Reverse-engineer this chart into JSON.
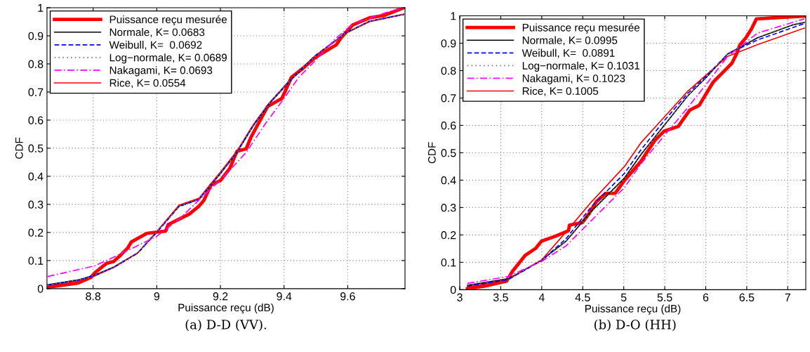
{
  "chart_data": [
    {
      "type": "line",
      "xlabel": "Puissance reçu (dB)",
      "ylabel": "CDF",
      "annotations": [
        "(a) D-D (VV)."
      ],
      "xlim": [
        8.655,
        9.78
      ],
      "ylim": [
        0,
        1
      ],
      "xticks": [
        8.8,
        9,
        9.2,
        9.4,
        9.6
      ],
      "yticks": [
        0,
        0.1,
        0.2,
        0.3,
        0.4,
        0.5,
        0.6,
        0.7,
        0.8,
        0.9,
        1
      ],
      "grid": true,
      "legend": "top left",
      "series": [
        {
          "name": "Puissance reçu mesurée",
          "color": "#ff0000",
          "line_style": "solid",
          "x": [
            8.657,
            8.753,
            8.794,
            8.805,
            8.842,
            8.865,
            8.887,
            8.909,
            8.92,
            8.947,
            8.969,
            9.028,
            9.036,
            9.073,
            9.103,
            9.133,
            9.148,
            9.17,
            9.2,
            9.229,
            9.252,
            9.281,
            9.296,
            9.318,
            9.348,
            9.393,
            9.423,
            9.46,
            9.497,
            9.564,
            9.579,
            9.616,
            9.668,
            9.713,
            9.776
          ],
          "values": [
            0.005,
            0.02,
            0.041,
            0.056,
            0.09,
            0.097,
            0.12,
            0.145,
            0.166,
            0.183,
            0.197,
            0.205,
            0.228,
            0.249,
            0.266,
            0.294,
            0.314,
            0.368,
            0.385,
            0.427,
            0.489,
            0.498,
            0.539,
            0.585,
            0.648,
            0.677,
            0.752,
            0.785,
            0.822,
            0.868,
            0.893,
            0.939,
            0.964,
            0.972,
            1.0
          ]
        },
        {
          "name": "Normale, K= 0.0683",
          "color": "#000000",
          "line_style": "solid",
          "x": [
            8.657,
            8.753,
            8.805,
            8.865,
            8.94,
            9.0,
            9.07,
            9.133,
            9.2,
            9.252,
            9.304,
            9.355,
            9.415,
            9.497,
            9.594,
            9.668,
            9.776
          ],
          "values": [
            0.014,
            0.031,
            0.048,
            0.077,
            0.127,
            0.202,
            0.294,
            0.318,
            0.41,
            0.485,
            0.581,
            0.66,
            0.735,
            0.827,
            0.91,
            0.952,
            0.977
          ]
        },
        {
          "name": "Weibull, K=  0.0692",
          "color": "#0000ff",
          "line_style": "dashed",
          "x": [
            8.657,
            8.753,
            8.805,
            8.865,
            8.94,
            9.0,
            9.07,
            9.133,
            9.2,
            9.252,
            9.304,
            9.355,
            9.415,
            9.497,
            9.594,
            9.668,
            9.776
          ],
          "values": [
            0.012,
            0.03,
            0.047,
            0.076,
            0.126,
            0.2,
            0.292,
            0.318,
            0.41,
            0.486,
            0.583,
            0.662,
            0.737,
            0.829,
            0.911,
            0.952,
            0.976
          ]
        },
        {
          "name": "Log−normale, K= 0.0689",
          "color": "#808080",
          "line_style": "dotted",
          "x": [
            8.657,
            8.753,
            8.805,
            8.865,
            8.94,
            9.0,
            9.07,
            9.133,
            9.2,
            9.252,
            9.304,
            9.355,
            9.415,
            9.497,
            9.594,
            9.668,
            9.776
          ],
          "values": [
            0.013,
            0.031,
            0.048,
            0.077,
            0.127,
            0.201,
            0.293,
            0.318,
            0.41,
            0.485,
            0.581,
            0.66,
            0.735,
            0.827,
            0.91,
            0.952,
            0.977
          ]
        },
        {
          "name": "Nakagami, K= 0.0693",
          "color": "#ff00ff",
          "line_style": "dashdot",
          "x": [
            8.657,
            8.805,
            8.876,
            9.0,
            9.073,
            9.135,
            9.206,
            9.281,
            9.34,
            9.4,
            9.446,
            9.497,
            9.557,
            9.616,
            9.727,
            9.776
          ],
          "values": [
            0.043,
            0.081,
            0.118,
            0.186,
            0.25,
            0.318,
            0.393,
            0.485,
            0.585,
            0.677,
            0.752,
            0.81,
            0.885,
            0.943,
            0.985,
            1.0
          ]
        },
        {
          "name": "Rice, K= 0.0554",
          "color": "#ff0000",
          "line_style": "solid",
          "x": [
            8.657,
            8.753,
            8.805,
            8.865,
            8.94,
            9.0,
            9.07,
            9.133,
            9.2,
            9.252,
            9.304,
            9.355,
            9.415,
            9.497,
            9.594,
            9.668,
            9.776
          ],
          "values": [
            0.01,
            0.028,
            0.045,
            0.075,
            0.127,
            0.203,
            0.297,
            0.322,
            0.415,
            0.49,
            0.585,
            0.663,
            0.738,
            0.828,
            0.909,
            0.95,
            0.976
          ]
        }
      ]
    },
    {
      "type": "line",
      "xlabel": "Puissance reçu (dB)",
      "ylabel": "CDF",
      "annotations": [
        "(b) D-O (HH)"
      ],
      "xlim": [
        3,
        7.22
      ],
      "ylim": [
        0,
        1
      ],
      "xticks": [
        3,
        3.5,
        4,
        4.5,
        5,
        5.5,
        6,
        6.5,
        7
      ],
      "yticks": [
        0,
        0.1,
        0.2,
        0.3,
        0.4,
        0.5,
        0.6,
        0.7,
        0.8,
        0.9,
        1
      ],
      "grid": true,
      "legend": "top left",
      "series": [
        {
          "name": "Puissance reçu mesurée",
          "color": "#ff0000",
          "line_style": "solid",
          "x": [
            3.094,
            3.299,
            3.57,
            3.641,
            3.798,
            3.926,
            3.997,
            4.154,
            4.325,
            4.339,
            4.496,
            4.581,
            4.667,
            4.781,
            4.895,
            5.009,
            5.208,
            5.379,
            5.493,
            5.664,
            5.806,
            5.92,
            6.006,
            6.091,
            6.234,
            6.319,
            6.376,
            6.419,
            6.49,
            6.561,
            6.618,
            7.216
          ],
          "values": [
            0.004,
            0.013,
            0.031,
            0.066,
            0.125,
            0.151,
            0.177,
            0.194,
            0.215,
            0.236,
            0.245,
            0.279,
            0.322,
            0.352,
            0.352,
            0.399,
            0.468,
            0.545,
            0.579,
            0.596,
            0.656,
            0.673,
            0.716,
            0.758,
            0.801,
            0.827,
            0.861,
            0.895,
            0.92,
            0.954,
            0.989,
            0.999
          ]
        },
        {
          "name": "Normale, K= 0.0995",
          "color": "#000000",
          "line_style": "solid",
          "x": [
            3.094,
            3.584,
            3.698,
            3.997,
            4.296,
            4.61,
            5.009,
            5.208,
            5.493,
            5.778,
            6.006,
            6.268,
            6.632,
            7.06,
            7.202
          ],
          "values": [
            0.016,
            0.04,
            0.057,
            0.108,
            0.177,
            0.288,
            0.408,
            0.493,
            0.6,
            0.707,
            0.775,
            0.861,
            0.92,
            0.967,
            0.976
          ]
        },
        {
          "name": "Weibull, K=  0.0891",
          "color": "#0000ff",
          "line_style": "dashed",
          "x": [
            3.094,
            3.584,
            3.997,
            4.296,
            4.61,
            5.009,
            5.208,
            5.493,
            5.778,
            6.006,
            6.268,
            6.632,
            7.202
          ],
          "values": [
            0.013,
            0.036,
            0.106,
            0.186,
            0.305,
            0.425,
            0.51,
            0.617,
            0.716,
            0.78,
            0.861,
            0.912,
            0.972
          ]
        },
        {
          "name": "Log−normale, K= 0.1031",
          "color": "#808080",
          "line_style": "dotted",
          "x": [
            3.094,
            3.584,
            3.698,
            3.997,
            4.296,
            4.61,
            5.009,
            5.208,
            5.493,
            5.778,
            6.006,
            6.268,
            6.632,
            7.06,
            7.202
          ],
          "values": [
            0.018,
            0.042,
            0.058,
            0.107,
            0.175,
            0.285,
            0.405,
            0.49,
            0.598,
            0.706,
            0.775,
            0.862,
            0.922,
            0.968,
            0.977
          ]
        },
        {
          "name": "Nakagami, K= 0.1023",
          "color": "#ff00ff",
          "line_style": "dashdot",
          "x": [
            3.094,
            3.584,
            3.997,
            4.296,
            4.61,
            5.009,
            5.208,
            5.493,
            5.778,
            6.006,
            6.268,
            6.632,
            7.202
          ],
          "values": [
            0.023,
            0.048,
            0.103,
            0.16,
            0.254,
            0.373,
            0.459,
            0.562,
            0.664,
            0.75,
            0.852,
            0.937,
            0.989
          ]
        },
        {
          "name": "Rice, K= 0.1005",
          "color": "#ff0000",
          "line_style": "solid",
          "x": [
            3.094,
            3.584,
            3.997,
            4.296,
            4.61,
            5.009,
            5.208,
            5.493,
            5.778,
            6.006,
            6.268,
            6.632,
            7.202
          ],
          "values": [
            0.01,
            0.036,
            0.108,
            0.211,
            0.322,
            0.45,
            0.536,
            0.63,
            0.724,
            0.784,
            0.852,
            0.895,
            0.955
          ]
        }
      ]
    }
  ]
}
